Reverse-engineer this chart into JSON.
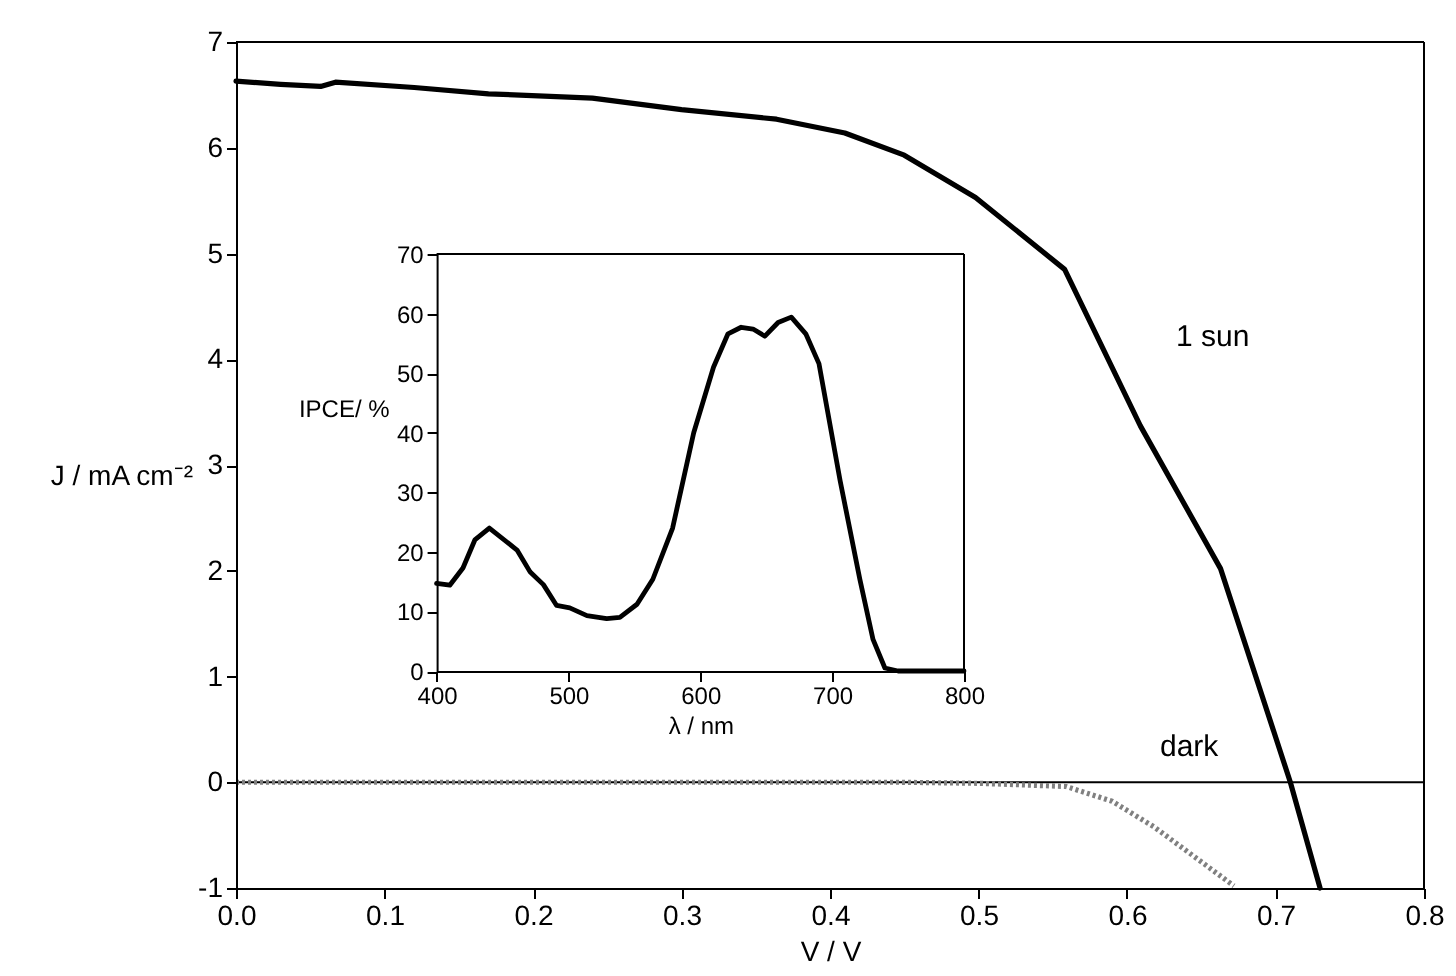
{
  "chart_data": [
    {
      "type": "line",
      "xlabel": "V / V",
      "ylabel": "J / mA cm⁻²",
      "xlim": [
        0,
        0.8
      ],
      "ylim": [
        -1,
        7
      ],
      "xticks": [
        {
          "value": 0,
          "label": "0.0"
        },
        0.1,
        0.2,
        0.3,
        0.4,
        0.5,
        0.6,
        0.7,
        0.8
      ],
      "yticks": [
        -1,
        0,
        1,
        2,
        3,
        4,
        5,
        6,
        7
      ],
      "series": [
        {
          "name": "1 sun",
          "color": "#000000",
          "x": [
            0,
            0.03,
            0.057,
            0.067,
            0.12,
            0.17,
            0.24,
            0.3,
            0.364,
            0.41,
            0.45,
            0.498,
            0.558,
            0.609,
            0.663,
            0.71,
            0.73
          ],
          "values": [
            6.63,
            6.6,
            6.58,
            6.62,
            6.57,
            6.51,
            6.47,
            6.36,
            6.27,
            6.14,
            5.93,
            5.53,
            4.85,
            3.37,
            2.02,
            0.0,
            -1.0
          ]
        },
        {
          "name": "dark",
          "color": "#808080",
          "line_style": "dotted",
          "x": [
            0,
            0.2,
            0.447,
            0.5,
            0.559,
            0.59,
            0.618,
            0.672
          ],
          "values": [
            0,
            0,
            0,
            -0.01,
            -0.04,
            -0.18,
            -0.42,
            -0.98
          ]
        }
      ],
      "ref_lines": [
        {
          "axis": "y",
          "value": 0,
          "color": "#000000"
        }
      ],
      "line_style": "solid",
      "marker": "none"
    },
    {
      "type": "line",
      "xlabel": "λ / nm",
      "ylabel": "IPCE/ %",
      "xlim": [
        400,
        800
      ],
      "ylim": [
        0,
        70
      ],
      "xticks": [
        400,
        500,
        600,
        700,
        800
      ],
      "yticks": [
        0,
        10,
        20,
        30,
        40,
        50,
        60,
        70
      ],
      "series": [
        {
          "color": "#000000",
          "x": [
            400,
            410,
            420,
            429,
            440,
            461,
            471,
            481,
            491,
            501,
            514,
            529,
            539,
            552,
            564,
            579,
            595,
            610,
            621,
            631,
            640,
            649,
            659,
            669,
            680,
            690,
            706,
            721,
            731,
            740,
            750,
            800
          ],
          "values": [
            14.7,
            14.4,
            17.3,
            22,
            24,
            20.3,
            16.6,
            14.5,
            11,
            10.6,
            9.3,
            8.8,
            9.0,
            11.2,
            15.4,
            24,
            40,
            51,
            56.6,
            57.7,
            57.4,
            56.2,
            58.5,
            59.4,
            56.6,
            51.6,
            32,
            15.4,
            5.3,
            0.5,
            0,
            0
          ]
        }
      ],
      "line_style": "solid",
      "marker": "none"
    }
  ]
}
